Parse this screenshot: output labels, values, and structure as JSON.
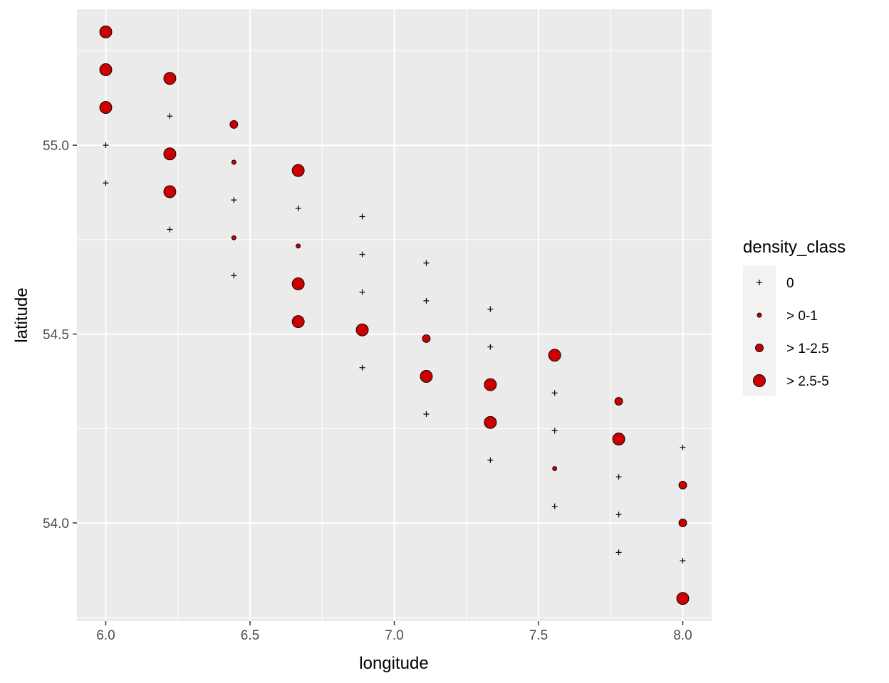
{
  "chart_data": {
    "type": "scatter",
    "title": "",
    "xlabel": "longitude",
    "ylabel": "latitude",
    "xlim": [
      5.9,
      8.1
    ],
    "ylim": [
      53.74,
      55.36
    ],
    "x_ticks": [
      6.0,
      6.5,
      7.0,
      7.5,
      8.0
    ],
    "x_tick_labels": [
      "6.0",
      "6.5",
      "7.0",
      "7.5",
      "8.0"
    ],
    "y_ticks": [
      54.0,
      54.5,
      55.0
    ],
    "y_tick_labels": [
      "54.0",
      "54.5",
      "55.0"
    ],
    "grid": true,
    "legend_position": "right",
    "legend": {
      "title": "density_class",
      "entries": [
        {
          "label": "0",
          "class": "0"
        },
        {
          "label": "> 0-1",
          "class": "0-1"
        },
        {
          "label": "> 1-2.5",
          "class": "1-2.5"
        },
        {
          "label": "> 2.5-5",
          "class": "2.5-5"
        }
      ]
    },
    "colors": {
      "panel_background": "#ebebeb",
      "grid": "#ffffff",
      "point_fill": "#cc0000",
      "point_stroke": "#000000",
      "legend_key_background": "#f2f2f2"
    },
    "points": [
      {
        "x": 6.0,
        "y": 55.3,
        "class": "2.5-5"
      },
      {
        "x": 6.0,
        "y": 55.2,
        "class": "2.5-5"
      },
      {
        "x": 6.0,
        "y": 55.1,
        "class": "2.5-5"
      },
      {
        "x": 6.0,
        "y": 55.0,
        "class": "0"
      },
      {
        "x": 6.0,
        "y": 54.9,
        "class": "0"
      },
      {
        "x": 6.222,
        "y": 55.177,
        "class": "2.5-5"
      },
      {
        "x": 6.222,
        "y": 55.077,
        "class": "0"
      },
      {
        "x": 6.222,
        "y": 54.977,
        "class": "2.5-5"
      },
      {
        "x": 6.222,
        "y": 54.877,
        "class": "2.5-5"
      },
      {
        "x": 6.222,
        "y": 54.777,
        "class": "0"
      },
      {
        "x": 6.444,
        "y": 55.055,
        "class": "1-2.5"
      },
      {
        "x": 6.444,
        "y": 54.955,
        "class": "0-1"
      },
      {
        "x": 6.444,
        "y": 54.855,
        "class": "0"
      },
      {
        "x": 6.444,
        "y": 54.755,
        "class": "0-1"
      },
      {
        "x": 6.444,
        "y": 54.655,
        "class": "0"
      },
      {
        "x": 6.667,
        "y": 54.933,
        "class": "2.5-5"
      },
      {
        "x": 6.667,
        "y": 54.833,
        "class": "0"
      },
      {
        "x": 6.667,
        "y": 54.733,
        "class": "0-1"
      },
      {
        "x": 6.667,
        "y": 54.633,
        "class": "2.5-5"
      },
      {
        "x": 6.667,
        "y": 54.533,
        "class": "2.5-5"
      },
      {
        "x": 6.889,
        "y": 54.811,
        "class": "0"
      },
      {
        "x": 6.889,
        "y": 54.711,
        "class": "0"
      },
      {
        "x": 6.889,
        "y": 54.611,
        "class": "0"
      },
      {
        "x": 6.889,
        "y": 54.511,
        "class": "2.5-5"
      },
      {
        "x": 6.889,
        "y": 54.411,
        "class": "0"
      },
      {
        "x": 7.111,
        "y": 54.688,
        "class": "0"
      },
      {
        "x": 7.111,
        "y": 54.588,
        "class": "0"
      },
      {
        "x": 7.111,
        "y": 54.488,
        "class": "1-2.5"
      },
      {
        "x": 7.111,
        "y": 54.388,
        "class": "2.5-5"
      },
      {
        "x": 7.111,
        "y": 54.288,
        "class": "0"
      },
      {
        "x": 7.333,
        "y": 54.566,
        "class": "0"
      },
      {
        "x": 7.333,
        "y": 54.466,
        "class": "0"
      },
      {
        "x": 7.333,
        "y": 54.366,
        "class": "2.5-5"
      },
      {
        "x": 7.333,
        "y": 54.266,
        "class": "2.5-5"
      },
      {
        "x": 7.333,
        "y": 54.166,
        "class": "0"
      },
      {
        "x": 7.556,
        "y": 54.444,
        "class": "2.5-5"
      },
      {
        "x": 7.556,
        "y": 54.344,
        "class": "0"
      },
      {
        "x": 7.556,
        "y": 54.244,
        "class": "0"
      },
      {
        "x": 7.556,
        "y": 54.144,
        "class": "0-1"
      },
      {
        "x": 7.556,
        "y": 54.044,
        "class": "0"
      },
      {
        "x": 7.778,
        "y": 54.322,
        "class": "1-2.5"
      },
      {
        "x": 7.778,
        "y": 54.222,
        "class": "2.5-5"
      },
      {
        "x": 7.778,
        "y": 54.122,
        "class": "0"
      },
      {
        "x": 7.778,
        "y": 54.022,
        "class": "0"
      },
      {
        "x": 7.778,
        "y": 53.922,
        "class": "0"
      },
      {
        "x": 8.0,
        "y": 54.2,
        "class": "0"
      },
      {
        "x": 8.0,
        "y": 54.1,
        "class": "1-2.5"
      },
      {
        "x": 8.0,
        "y": 54.0,
        "class": "1-2.5"
      },
      {
        "x": 8.0,
        "y": 53.9,
        "class": "0"
      },
      {
        "x": 8.0,
        "y": 53.8,
        "class": "2.5-5"
      }
    ]
  }
}
